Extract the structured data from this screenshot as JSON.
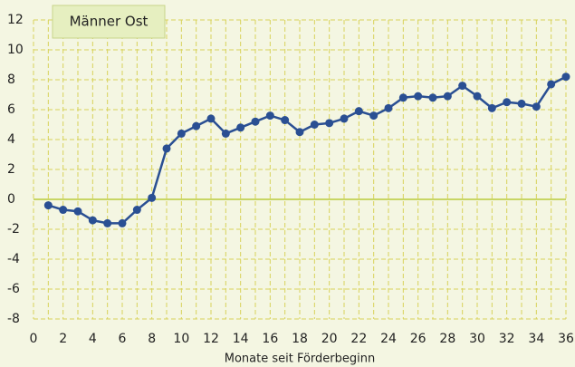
{
  "chart_data": {
    "type": "line",
    "title": "Männer Ost",
    "x_label": "Monate seit Förderbeginn",
    "x": [
      1,
      2,
      3,
      4,
      5,
      6,
      7,
      8,
      9,
      10,
      11,
      12,
      13,
      14,
      15,
      16,
      17,
      18,
      19,
      20,
      21,
      22,
      23,
      24,
      25,
      26,
      27,
      28,
      29,
      30,
      31,
      32,
      33,
      34,
      35,
      36
    ],
    "series": [
      {
        "name": "Männer Ost",
        "color": "#2a4f93",
        "values": [
          -0.4,
          -0.7,
          -0.8,
          -1.4,
          -1.6,
          -1.6,
          -0.7,
          0.1,
          3.4,
          4.4,
          4.9,
          5.4,
          4.4,
          4.8,
          5.2,
          5.6,
          5.3,
          4.5,
          5.0,
          5.1,
          5.4,
          5.9,
          5.6,
          6.1,
          6.8,
          6.9,
          6.8,
          6.9,
          7.6,
          6.9,
          6.1,
          6.5,
          6.4,
          6.2,
          7.7,
          8.2
        ]
      }
    ],
    "xlim": [
      0,
      36
    ],
    "xticks": [
      0,
      2,
      4,
      6,
      8,
      10,
      12,
      14,
      16,
      18,
      20,
      22,
      24,
      26,
      28,
      30,
      32,
      34,
      36
    ],
    "ylim": [
      -8,
      12
    ],
    "yticks": [
      -8,
      -6,
      -4,
      -2,
      0,
      2,
      4,
      6,
      8,
      10,
      12
    ],
    "grid": true
  }
}
